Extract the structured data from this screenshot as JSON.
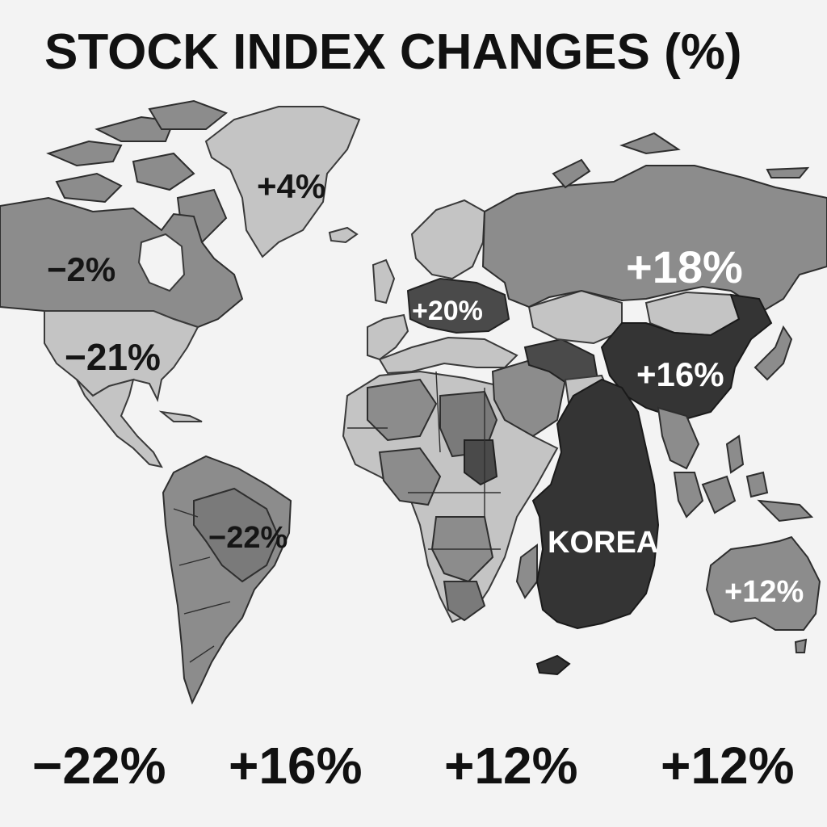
{
  "title": "STOCK INDEX CHANGES (%)",
  "regions": {
    "greenland": "+4%",
    "canada": "−2%",
    "usa": "−21%",
    "brazil": "−22%",
    "europe": "+20%",
    "russia": "+18%",
    "china": "+16%",
    "korea": "KOREA",
    "australia": "+12%"
  },
  "bottom_values": [
    "−22%",
    "+16%",
    "+12%",
    "+12%"
  ]
}
